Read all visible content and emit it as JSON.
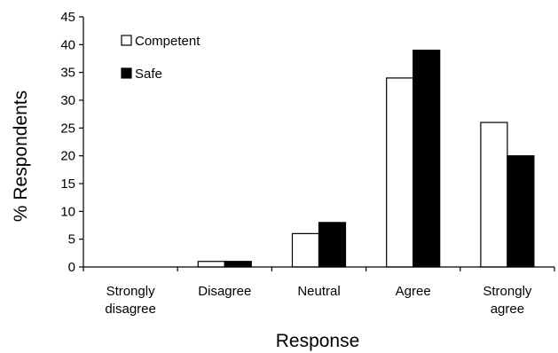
{
  "chart_data": {
    "type": "bar",
    "title": "",
    "xlabel": "Response",
    "ylabel": "% Respondents",
    "categories": [
      [
        "Strongly",
        "disagree"
      ],
      [
        "Disagree"
      ],
      [
        "Neutral"
      ],
      [
        "Agree"
      ],
      [
        "Strongly",
        "agree"
      ]
    ],
    "series": [
      {
        "name": "Competent",
        "values": [
          0,
          1,
          6,
          34,
          26
        ],
        "color": "#ffffff",
        "stroke": "#000000"
      },
      {
        "name": "Safe",
        "values": [
          0,
          1,
          8,
          39,
          20
        ],
        "color": "#000000",
        "stroke": "#000000"
      }
    ],
    "ylim": [
      0,
      45
    ],
    "yticks": [
      0,
      5,
      10,
      15,
      20,
      25,
      30,
      35,
      40,
      45
    ],
    "grid": false,
    "legend_position": "top-left"
  }
}
